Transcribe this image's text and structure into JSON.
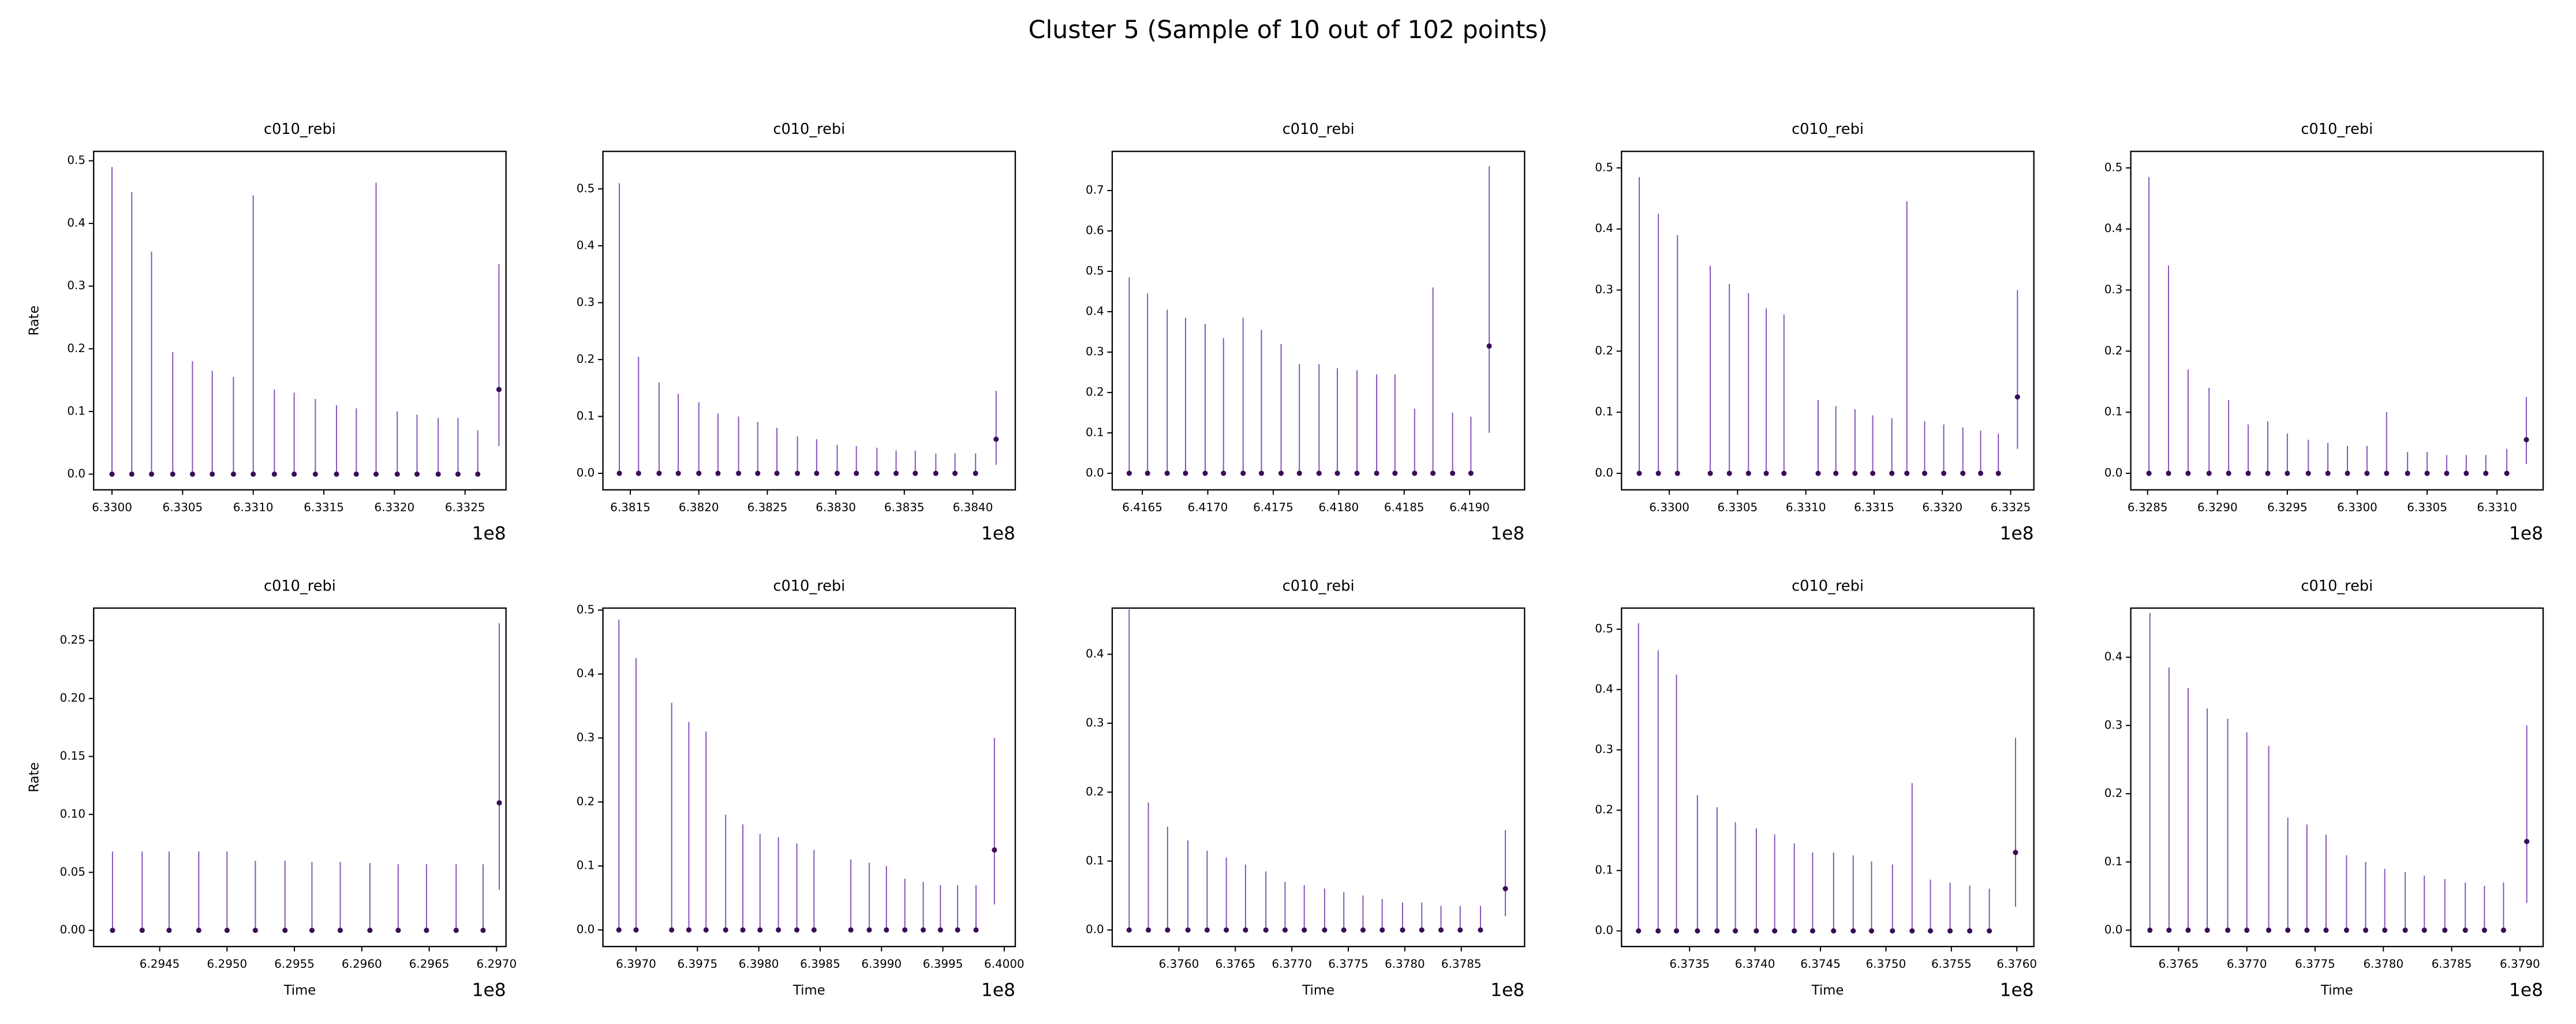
{
  "title": "Cluster 5 (Sample of 10 out of 102 points)",
  "chart_data": [
    {
      "type": "errorbar",
      "title": "c010_rebi",
      "ylabel": "Rate",
      "x_offset": "1e8",
      "color": "#8356b8",
      "marker_color": "#3a0d57",
      "x": [
        6.33,
        6.33014,
        6.33028,
        6.33043,
        6.33057,
        6.33071,
        6.33086,
        6.331,
        6.33115,
        6.33129,
        6.33144,
        6.33159,
        6.33173,
        6.33187,
        6.33202,
        6.33216,
        6.33231,
        6.33245,
        6.33259,
        6.33274
      ],
      "values": [
        0,
        0,
        0,
        0,
        0,
        0,
        0,
        0,
        0,
        0,
        0,
        0,
        0,
        0,
        0,
        0,
        0,
        0,
        0,
        0.135
      ],
      "err_low": [
        0,
        0,
        0,
        0,
        0,
        0,
        0,
        0,
        0,
        0,
        0,
        0,
        0,
        0,
        0,
        0,
        0,
        0,
        0,
        0.09
      ],
      "err_high": [
        0.49,
        0.45,
        0.355,
        0.195,
        0.18,
        0.165,
        0.155,
        0.445,
        0.135,
        0.13,
        0.12,
        0.11,
        0.105,
        0.465,
        0.1,
        0.095,
        0.09,
        0.09,
        0.07,
        0.2
      ],
      "xlim": [
        6.32987,
        6.33279
      ],
      "ylim": [
        -0.025,
        0.515
      ],
      "xticks": [
        {
          "value": 6.33,
          "label": "6.3300"
        },
        6.3305,
        {
          "value": 6.331,
          "label": "6.3310"
        },
        6.3315,
        {
          "value": 6.332,
          "label": "6.3320"
        },
        6.3325
      ],
      "yticks": [
        {
          "value": 0,
          "label": "0.0"
        },
        0.1,
        0.2,
        0.3,
        0.4,
        0.5
      ]
    },
    {
      "type": "errorbar",
      "title": "c010_rebi",
      "x_offset": "1e8",
      "color": "#8356b8",
      "marker_color": "#3a0d57",
      "x": [
        6.38142,
        6.38156,
        6.38171,
        6.38185,
        6.382,
        6.38214,
        6.38229,
        6.38243,
        6.38257,
        6.38272,
        6.38286,
        6.38301,
        6.38315,
        6.3833,
        6.38344,
        6.38358,
        6.38373,
        6.38387,
        6.38402,
        6.38417
      ],
      "values": [
        0,
        0,
        0,
        0,
        0,
        0,
        0,
        0,
        0,
        0,
        0,
        0,
        0,
        0,
        0,
        0,
        0,
        0,
        0,
        0.06
      ],
      "err_low": [
        0,
        0,
        0,
        0,
        0,
        0,
        0,
        0,
        0,
        0,
        0,
        0,
        0,
        0,
        0,
        0,
        0,
        0,
        0,
        0.045
      ],
      "err_high": [
        0.51,
        0.205,
        0.16,
        0.14,
        0.125,
        0.105,
        0.1,
        0.09,
        0.08,
        0.065,
        0.06,
        0.05,
        0.048,
        0.045,
        0.04,
        0.04,
        0.035,
        0.035,
        0.035,
        0.085
      ],
      "xlim": [
        6.3813,
        6.38431
      ],
      "ylim": [
        -0.029,
        0.566
      ],
      "xticks": [
        6.3815,
        {
          "value": 6.382,
          "label": "6.3820"
        },
        6.3825,
        {
          "value": 6.383,
          "label": "6.3830"
        },
        6.3835,
        {
          "value": 6.384,
          "label": "6.3840"
        }
      ],
      "yticks": [
        {
          "value": 0,
          "label": "0.0"
        },
        0.1,
        0.2,
        0.3,
        0.4,
        0.5
      ]
    },
    {
      "type": "errorbar",
      "title": "c010_rebi",
      "x_offset": "1e8",
      "color": "#8356b8",
      "marker_color": "#3a0d57",
      "x": [
        6.4164,
        6.41654,
        6.41669,
        6.41683,
        6.41698,
        6.41712,
        6.41727,
        6.41741,
        6.41756,
        6.4177,
        6.41785,
        6.41799,
        6.41814,
        6.41829,
        6.41843,
        6.41858,
        6.41872,
        6.41887,
        6.41901,
        6.41915
      ],
      "values": [
        0,
        0,
        0,
        0,
        0,
        0,
        0,
        0,
        0,
        0,
        0,
        0,
        0,
        0,
        0,
        0,
        0,
        0,
        0,
        0.315
      ],
      "err_low": [
        0,
        0,
        0,
        0,
        0,
        0,
        0,
        0,
        0,
        0,
        0,
        0,
        0,
        0,
        0,
        0,
        0,
        0,
        0,
        0.215
      ],
      "err_high": [
        0.485,
        0.445,
        0.405,
        0.385,
        0.37,
        0.335,
        0.385,
        0.355,
        0.32,
        0.27,
        0.27,
        0.26,
        0.255,
        0.245,
        0.245,
        0.16,
        0.46,
        0.15,
        0.14,
        0.445
      ],
      "xlim": [
        6.41627,
        6.41942
      ],
      "ylim": [
        -0.041,
        0.797
      ],
      "xticks": [
        6.4165,
        {
          "value": 6.417,
          "label": "6.4170"
        },
        6.4175,
        {
          "value": 6.418,
          "label": "6.4180"
        },
        6.4185,
        {
          "value": 6.419,
          "label": "6.4190"
        }
      ],
      "yticks": [
        {
          "value": 0,
          "label": "0.0"
        },
        0.1,
        0.2,
        0.3,
        0.4,
        0.5,
        0.6,
        0.7
      ]
    },
    {
      "type": "errorbar",
      "title": "c010_rebi",
      "x_offset": "1e8",
      "color": "#8356b8",
      "marker_color": "#3a0d57",
      "x": [
        6.32978,
        6.32992,
        6.33006,
        6.3303,
        6.33044,
        6.33058,
        6.33071,
        6.33084,
        6.33109,
        6.33122,
        6.33136,
        6.33149,
        6.33163,
        6.33174,
        6.33187,
        6.33201,
        6.33215,
        6.33228,
        6.33241,
        6.33255
      ],
      "values": [
        0,
        0,
        0,
        0,
        0,
        0,
        0,
        0,
        0,
        0,
        0,
        0,
        0,
        0,
        0,
        0,
        0,
        0,
        0,
        0.125
      ],
      "err_low": [
        0,
        0,
        0,
        0,
        0,
        0,
        0,
        0,
        0,
        0,
        0,
        0,
        0,
        0,
        0,
        0,
        0,
        0,
        0,
        0.085
      ],
      "err_high": [
        0.485,
        0.425,
        0.39,
        0.34,
        0.31,
        0.295,
        0.27,
        0.26,
        0.12,
        0.11,
        0.105,
        0.095,
        0.09,
        0.445,
        0.085,
        0.08,
        0.075,
        0.07,
        0.065,
        0.175
      ],
      "xlim": [
        6.32965,
        6.33267
      ],
      "ylim": [
        -0.027,
        0.527
      ],
      "xticks": [
        {
          "value": 6.33,
          "label": "6.3300"
        },
        6.3305,
        {
          "value": 6.331,
          "label": "6.3310"
        },
        6.3315,
        {
          "value": 6.332,
          "label": "6.3320"
        },
        6.3325
      ],
      "yticks": [
        {
          "value": 0,
          "label": "0.0"
        },
        0.1,
        0.2,
        0.3,
        0.4,
        0.5
      ]
    },
    {
      "type": "errorbar",
      "title": "c010_rebi",
      "x_offset": "1e8",
      "color": "#8356b8",
      "marker_color": "#3a0d57",
      "x": [
        6.32851,
        6.32865,
        6.32879,
        6.32894,
        6.32908,
        6.32922,
        6.32936,
        6.3295,
        6.32965,
        6.32979,
        6.32993,
        6.33007,
        6.33021,
        6.33036,
        6.3305,
        6.33064,
        6.33078,
        6.33092,
        6.33107,
        6.33121
      ],
      "values": [
        0,
        0,
        0,
        0,
        0,
        0,
        0,
        0,
        0,
        0,
        0,
        0,
        0,
        0,
        0,
        0,
        0,
        0,
        0,
        0.055
      ],
      "err_low": [
        0,
        0,
        0,
        0,
        0,
        0,
        0,
        0,
        0,
        0,
        0,
        0,
        0,
        0,
        0,
        0,
        0,
        0,
        0,
        0.04
      ],
      "err_high": [
        0.485,
        0.34,
        0.17,
        0.14,
        0.12,
        0.08,
        0.085,
        0.065,
        0.055,
        0.05,
        0.045,
        0.045,
        0.1,
        0.035,
        0.035,
        0.03,
        0.03,
        0.03,
        0.04,
        0.07
      ],
      "xlim": [
        6.32838,
        6.33133
      ],
      "ylim": [
        -0.027,
        0.527
      ],
      "xticks": [
        6.3285,
        {
          "value": 6.329,
          "label": "6.3290"
        },
        6.3295,
        {
          "value": 6.33,
          "label": "6.3300"
        },
        6.3305,
        {
          "value": 6.331,
          "label": "6.3310"
        }
      ],
      "yticks": [
        {
          "value": 0,
          "label": "0.0"
        },
        0.1,
        0.2,
        0.3,
        0.4,
        0.5
      ]
    },
    {
      "type": "errorbar",
      "title": "c010_rebi",
      "xlabel": "Time",
      "ylabel": "Rate",
      "x_offset": "1e8",
      "color": "#8356b8",
      "marker_color": "#3a0d57",
      "x": [
        6.29415,
        6.29437,
        6.29457,
        6.29479,
        6.295,
        6.29521,
        6.29543,
        6.29563,
        6.29584,
        6.29606,
        6.29627,
        6.29648,
        6.2967,
        6.2969,
        6.29702
      ],
      "values": [
        0,
        0,
        0,
        0,
        0,
        0,
        0,
        0,
        0,
        0,
        0,
        0,
        0,
        0,
        0.11
      ],
      "err_low": [
        0,
        0,
        0,
        0,
        0,
        0,
        0,
        0,
        0,
        0,
        0,
        0,
        0,
        0,
        0.075
      ],
      "err_high": [
        0.068,
        0.068,
        0.068,
        0.068,
        0.068,
        0.06,
        0.06,
        0.059,
        0.059,
        0.058,
        0.057,
        0.057,
        0.057,
        0.057,
        0.155
      ],
      "xlim": [
        6.29401,
        6.29707
      ],
      "ylim": [
        -0.014,
        0.278
      ],
      "xticks": [
        6.2945,
        {
          "value": 6.295,
          "label": "6.2950"
        },
        6.2955,
        {
          "value": 6.296,
          "label": "6.2960"
        },
        6.2965,
        {
          "value": 6.297,
          "label": "6.2970"
        }
      ],
      "yticks": [
        {
          "value": 0,
          "label": "0.00"
        },
        0.05,
        {
          "value": 0.1,
          "label": "0.10"
        },
        0.15,
        {
          "value": 0.2,
          "label": "0.20"
        },
        0.25
      ]
    },
    {
      "type": "errorbar",
      "title": "c010_rebi",
      "xlabel": "Time",
      "x_offset": "1e8",
      "color": "#8356b8",
      "marker_color": "#3a0d57",
      "x": [
        6.39686,
        6.397,
        6.39729,
        6.39743,
        6.39757,
        6.39773,
        6.39787,
        6.39801,
        6.39816,
        6.39831,
        6.39845,
        6.39875,
        6.3989,
        6.39904,
        6.39919,
        6.39934,
        6.39948,
        6.39962,
        6.39977,
        6.39992
      ],
      "values": [
        0,
        0,
        0,
        0,
        0,
        0,
        0,
        0,
        0,
        0,
        0,
        0,
        0,
        0,
        0,
        0,
        0,
        0,
        0,
        0.125
      ],
      "err_low": [
        0,
        0,
        0,
        0,
        0,
        0,
        0,
        0,
        0,
        0,
        0,
        0,
        0,
        0,
        0,
        0,
        0,
        0,
        0,
        0.085
      ],
      "err_high": [
        0.485,
        0.425,
        0.355,
        0.325,
        0.31,
        0.18,
        0.165,
        0.15,
        0.145,
        0.135,
        0.125,
        0.11,
        0.105,
        0.1,
        0.08,
        0.075,
        0.07,
        0.07,
        0.07,
        0.175
      ],
      "xlim": [
        6.39673,
        6.40009
      ],
      "ylim": [
        -0.026,
        0.503
      ],
      "xticks": [
        {
          "value": 6.397,
          "label": "6.3970"
        },
        6.3975,
        {
          "value": 6.398,
          "label": "6.3980"
        },
        6.3985,
        {
          "value": 6.399,
          "label": "6.3990"
        },
        6.3995,
        {
          "value": 6.4,
          "label": "6.4000"
        }
      ],
      "yticks": [
        {
          "value": 0,
          "label": "0.0"
        },
        0.1,
        0.2,
        0.3,
        0.4,
        0.5
      ]
    },
    {
      "type": "errorbar",
      "title": "c010_rebi",
      "xlabel": "Time",
      "x_offset": "1e8",
      "color": "#8356b8",
      "marker_color": "#3a0d57",
      "x": [
        6.37556,
        6.37573,
        6.3759,
        6.37608,
        6.37625,
        6.37642,
        6.37659,
        6.37677,
        6.37694,
        6.37711,
        6.37729,
        6.37746,
        6.37763,
        6.3778,
        6.37798,
        6.37815,
        6.37832,
        6.37849,
        6.37867,
        6.37889
      ],
      "values": [
        0,
        0,
        0,
        0,
        0,
        0,
        0,
        0,
        0,
        0,
        0,
        0,
        0,
        0,
        0,
        0,
        0,
        0,
        0,
        0.06
      ],
      "err_low": [
        0,
        0,
        0,
        0,
        0,
        0,
        0,
        0,
        0,
        0,
        0,
        0,
        0,
        0,
        0,
        0,
        0,
        0,
        0,
        0.04
      ],
      "err_high": [
        0.465,
        0.185,
        0.15,
        0.13,
        0.115,
        0.105,
        0.095,
        0.085,
        0.07,
        0.065,
        0.06,
        0.055,
        0.05,
        0.045,
        0.04,
        0.04,
        0.035,
        0.035,
        0.035,
        0.085
      ],
      "xlim": [
        6.37541,
        6.37906
      ],
      "ylim": [
        -0.024,
        0.467
      ],
      "xticks": [
        {
          "value": 6.376,
          "label": "6.3760"
        },
        6.3765,
        {
          "value": 6.377,
          "label": "6.3770"
        },
        6.3775,
        {
          "value": 6.378,
          "label": "6.3780"
        },
        6.3785
      ],
      "yticks": [
        {
          "value": 0,
          "label": "0.0"
        },
        0.1,
        0.2,
        0.3,
        0.4
      ]
    },
    {
      "type": "errorbar",
      "title": "c010_rebi",
      "xlabel": "Time",
      "x_offset": "1e8",
      "color": "#8356b8",
      "marker_color": "#3a0d57",
      "x": [
        6.37311,
        6.37326,
        6.3734,
        6.37356,
        6.37371,
        6.37385,
        6.37401,
        6.37415,
        6.3743,
        6.37444,
        6.3746,
        6.37475,
        6.37489,
        6.37505,
        6.3752,
        6.37534,
        6.37549,
        6.37564,
        6.37579,
        6.37599
      ],
      "values": [
        0,
        0,
        0,
        0,
        0,
        0,
        0,
        0,
        0,
        0,
        0,
        0,
        0,
        0,
        0,
        0,
        0,
        0,
        0,
        0.13
      ],
      "err_low": [
        0,
        0,
        0,
        0,
        0,
        0,
        0,
        0,
        0,
        0,
        0,
        0,
        0,
        0,
        0,
        0,
        0,
        0,
        0,
        0.09
      ],
      "err_high": [
        0.51,
        0.465,
        0.425,
        0.225,
        0.205,
        0.18,
        0.17,
        0.16,
        0.145,
        0.13,
        0.13,
        0.125,
        0.115,
        0.11,
        0.245,
        0.085,
        0.08,
        0.075,
        0.07,
        0.19
      ],
      "xlim": [
        6.37298,
        6.37613
      ],
      "ylim": [
        -0.026,
        0.535
      ],
      "xticks": [
        6.3735,
        {
          "value": 6.374,
          "label": "6.3740"
        },
        6.3745,
        {
          "value": 6.375,
          "label": "6.3750"
        },
        6.3755,
        {
          "value": 6.376,
          "label": "6.3760"
        }
      ],
      "yticks": [
        {
          "value": 0,
          "label": "0.0"
        },
        0.1,
        0.2,
        0.3,
        0.4,
        0.5
      ]
    },
    {
      "type": "errorbar",
      "title": "c010_rebi",
      "xlabel": "Time",
      "x_offset": "1e8",
      "color": "#8356b8",
      "marker_color": "#3a0d57",
      "x": [
        6.37629,
        6.37643,
        6.37657,
        6.37671,
        6.37686,
        6.377,
        6.37716,
        6.3773,
        6.37744,
        6.37758,
        6.37773,
        6.37787,
        6.37801,
        6.37816,
        6.3783,
        6.37845,
        6.3786,
        6.37874,
        6.37888,
        6.37905
      ],
      "values": [
        0,
        0,
        0,
        0,
        0,
        0,
        0,
        0,
        0,
        0,
        0,
        0,
        0,
        0,
        0,
        0,
        0,
        0,
        0,
        0.13
      ],
      "err_low": [
        0,
        0,
        0,
        0,
        0,
        0,
        0,
        0,
        0,
        0,
        0,
        0,
        0,
        0,
        0,
        0,
        0,
        0,
        0,
        0.09
      ],
      "err_high": [
        0.465,
        0.385,
        0.355,
        0.325,
        0.31,
        0.29,
        0.27,
        0.165,
        0.155,
        0.14,
        0.11,
        0.1,
        0.09,
        0.085,
        0.08,
        0.075,
        0.07,
        0.065,
        0.07,
        0.17
      ],
      "xlim": [
        6.37615,
        6.37917
      ],
      "ylim": [
        -0.024,
        0.472
      ],
      "xticks": [
        6.3765,
        {
          "value": 6.377,
          "label": "6.3770"
        },
        6.3775,
        {
          "value": 6.378,
          "label": "6.3780"
        },
        6.3785,
        {
          "value": 6.379,
          "label": "6.3790"
        }
      ],
      "yticks": [
        {
          "value": 0,
          "label": "0.0"
        },
        0.1,
        0.2,
        0.3,
        0.4
      ]
    }
  ]
}
